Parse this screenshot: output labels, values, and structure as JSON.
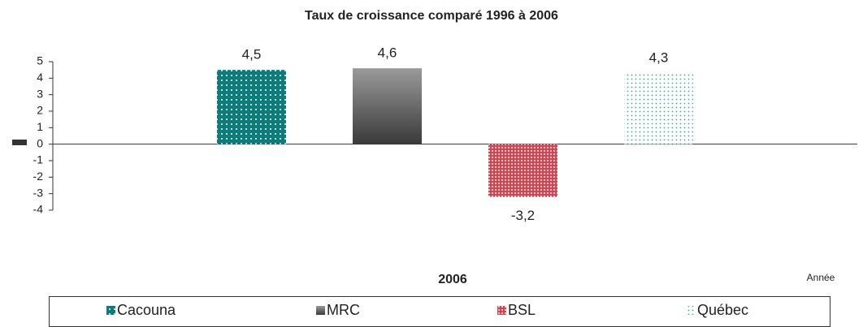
{
  "chart_data": {
    "type": "bar",
    "title": "Taux de croissance comparé 1996 à 2006",
    "categories": [
      "2006"
    ],
    "x_label": "Année",
    "series": [
      {
        "name": "Cacouna",
        "color": "#0e7b7b",
        "values": [
          4.5
        ],
        "value_labels": [
          "4,5"
        ]
      },
      {
        "name": "MRC",
        "color": "#6a6a6a",
        "values": [
          4.6
        ],
        "value_labels": [
          "4,6"
        ]
      },
      {
        "name": "BSL",
        "color": "#d9434f",
        "values": [
          -3.2
        ],
        "value_labels": [
          "-3,2"
        ]
      },
      {
        "name": "Québec",
        "color": "#3aa79c",
        "values": [
          4.3
        ],
        "value_labels": [
          "4,3"
        ]
      }
    ],
    "ylim": [
      -4,
      5
    ],
    "yticks": [
      5,
      4,
      3,
      2,
      1,
      0,
      -1,
      -2,
      -3,
      -4
    ],
    "legend": "bottom"
  }
}
